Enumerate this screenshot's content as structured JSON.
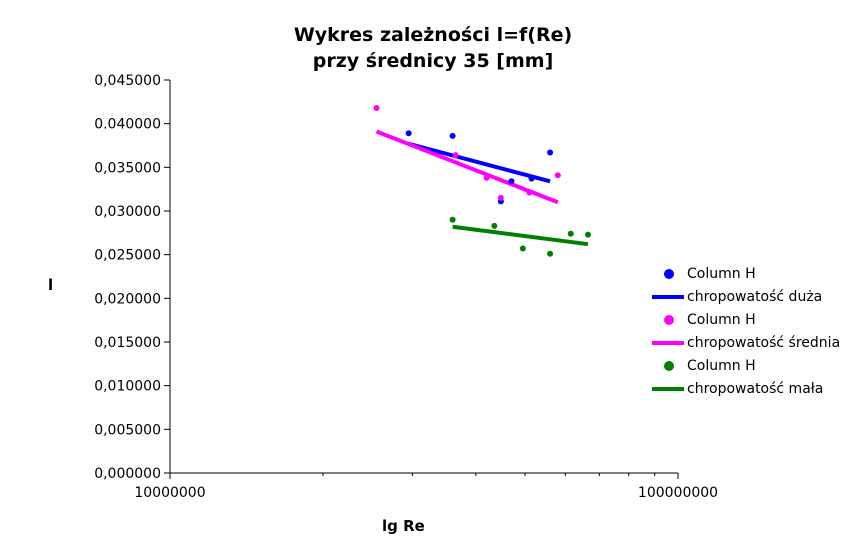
{
  "chart_data": {
    "type": "scatter",
    "title": "Wykres zależności l=f(Re)",
    "subtitle": "przy średnicy 35 [mm]",
    "xlabel": "lg Re",
    "ylabel": "l",
    "xscale": "log",
    "xlim": [
      10000000,
      100000000
    ],
    "ylim": [
      0,
      0.045
    ],
    "x_ticks": [
      "10000000",
      "100000000"
    ],
    "y_ticks": [
      "0,000000",
      "0,005000",
      "0,010000",
      "0,015000",
      "0,020000",
      "0,025000",
      "0,030000",
      "0,035000",
      "0.040000",
      "0,045000"
    ],
    "legend_position": "right",
    "grid": false,
    "series": [
      {
        "name": "Column H",
        "kind": "points",
        "color": "#0000ff",
        "x": [
          29500000,
          36000000,
          44800000,
          47000000,
          51500000,
          56000000
        ],
        "y": [
          0.0389,
          0.0386,
          0.0311,
          0.0334,
          0.0337,
          0.0367
        ]
      },
      {
        "name": "chropowatość duża",
        "kind": "line",
        "color": "#0000ff",
        "x": [
          29500000,
          56000000
        ],
        "y": [
          0.0377,
          0.0334
        ]
      },
      {
        "name": "Column H",
        "kind": "points",
        "color": "#ff00ff",
        "x": [
          25500000,
          36500000,
          42000000,
          44800000,
          51000000,
          58000000
        ],
        "y": [
          0.0418,
          0.0364,
          0.0338,
          0.0315,
          0.0321,
          0.0341
        ]
      },
      {
        "name": "chropowatość średnia",
        "kind": "line",
        "color": "#ff00ff",
        "x": [
          25500000,
          58000000
        ],
        "y": [
          0.0391,
          0.031
        ]
      },
      {
        "name": "Column H",
        "kind": "points",
        "color": "#008000",
        "x": [
          36000000,
          43500000,
          49500000,
          56000000,
          61500000,
          66500000
        ],
        "y": [
          0.029,
          0.0283,
          0.0257,
          0.0251,
          0.0274,
          0.0273
        ]
      },
      {
        "name": "chropowatość mała",
        "kind": "line",
        "color": "#008000",
        "x": [
          36000000,
          66500000
        ],
        "y": [
          0.0282,
          0.0262
        ]
      }
    ]
  }
}
